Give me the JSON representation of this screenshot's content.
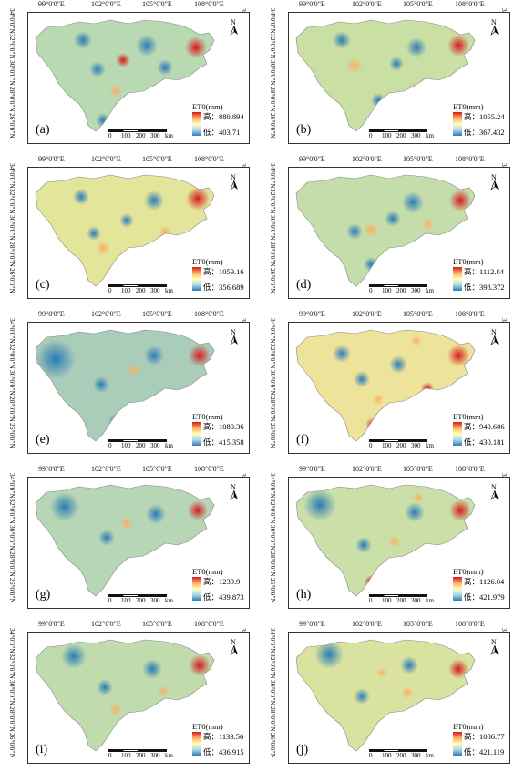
{
  "lon_ticks": [
    "99°0'0\"E",
    "102°0'0\"E",
    "105°0'0\"E",
    "108°0'0\"E"
  ],
  "lat_ticks": [
    "34°0'0\"N",
    "32°0'0\"N",
    "30°0'0\"N",
    "28°0'0\"N",
    "26°0'0\"N"
  ],
  "scale": {
    "labels": [
      "0",
      "100",
      "200",
      "300"
    ],
    "unit": "km"
  },
  "north_label": "N",
  "legend_title": "ET0(mm)",
  "colors": {
    "high": "#d7191c",
    "mid": "#ffffbf",
    "low": "#2c7bb6"
  },
  "panels": [
    {
      "label": "(a)",
      "high": "高：880.894",
      "low": "低：403.71"
    },
    {
      "label": "(b)",
      "high": "高：1055.24",
      "low": "低：367.432"
    },
    {
      "label": "(c)",
      "high": "高：1059.16",
      "low": "低：356.689"
    },
    {
      "label": "(d)",
      "high": "高：1112.84",
      "low": "低：398.372"
    },
    {
      "label": "(e)",
      "high": "高：1080.36",
      "low": "低：415.358"
    },
    {
      "label": "(f)",
      "high": "高：940.606",
      "low": "低：430.181"
    },
    {
      "label": "(g)",
      "high": "高：1239.9",
      "low": "低：439.873"
    },
    {
      "label": "(h)",
      "high": "高：1126.04",
      "low": "低：421.979"
    },
    {
      "label": "(i)",
      "high": "高：1133.56",
      "low": "低：436.915"
    },
    {
      "label": "(j)",
      "high": "高：1086.77",
      "low": "低：421.119"
    }
  ]
}
